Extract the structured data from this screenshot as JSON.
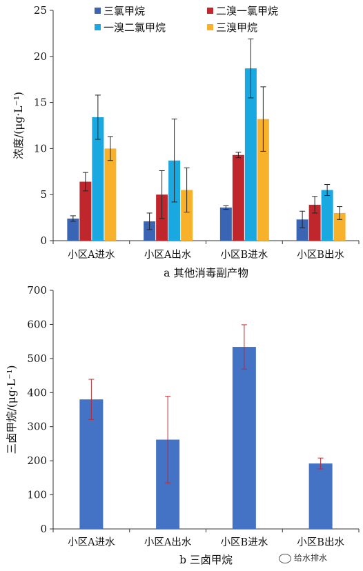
{
  "chart_data": [
    {
      "type": "bar",
      "caption": "a 其他消毒副产物",
      "ylabel": "浓度/(μg·L⁻¹)",
      "ylim": [
        0,
        25
      ],
      "yticks": [
        0,
        5,
        10,
        15,
        20,
        25
      ],
      "categories": [
        "小区A进水",
        "小区A出水",
        "小区B进水",
        "小区B出水"
      ],
      "legend_position": "top",
      "series": [
        {
          "name": "三氯甲烷",
          "color": "#3a65b5",
          "values": [
            2.4,
            2.1,
            3.6,
            2.3
          ],
          "errors": [
            0.3,
            0.9,
            0.2,
            0.9
          ]
        },
        {
          "name": "二溴一氯甲烷",
          "color": "#c0272d",
          "values": [
            6.4,
            5.0,
            9.3,
            3.9
          ],
          "errors": [
            1.0,
            2.6,
            0.3,
            0.9
          ]
        },
        {
          "name": "一溴二氯甲烷",
          "color": "#1aa8e0",
          "values": [
            13.4,
            8.7,
            18.7,
            5.5
          ],
          "errors": [
            2.4,
            4.5,
            3.2,
            0.6
          ]
        },
        {
          "name": "三溴甲烷",
          "color": "#f7b12b",
          "values": [
            10.0,
            5.5,
            13.2,
            3.0
          ],
          "errors": [
            1.3,
            2.4,
            3.5,
            0.7
          ]
        }
      ]
    },
    {
      "type": "bar",
      "caption": "b 三卤甲烷",
      "ylabel": "三卤甲烷/(μg·L⁻¹)",
      "ylim": [
        0,
        700
      ],
      "yticks": [
        0,
        100,
        200,
        300,
        400,
        500,
        600,
        700
      ],
      "categories": [
        "小区A进水",
        "小区A出水",
        "小区B进水",
        "小区B出水"
      ],
      "series": [
        {
          "name": "",
          "color": "#4472c4",
          "error_color": "#c0272d",
          "values": [
            380,
            262,
            534,
            192
          ],
          "errors": [
            59,
            127,
            65,
            16
          ]
        }
      ]
    }
  ],
  "watermark": "给水排水"
}
